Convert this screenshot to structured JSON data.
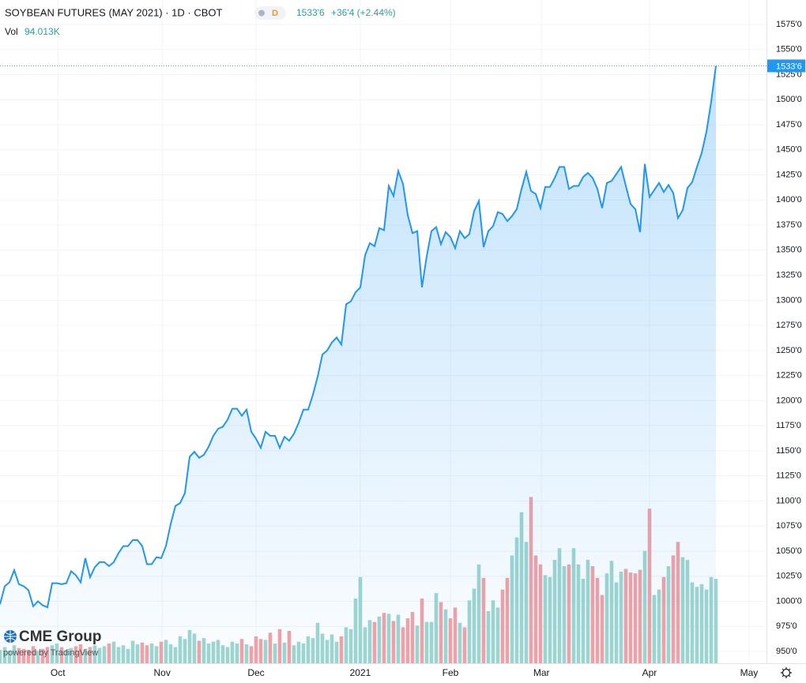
{
  "chart_data": {
    "type": "area",
    "title": "SOYBEAN FUTURES (MAY 2021) · 1D · CBOT",
    "interval_badge": "D",
    "last_price": {
      "value": 1533.75,
      "label": "1533'6"
    },
    "change": "+36'4 (+2.44%)",
    "volume_title": "Vol",
    "volume_label": "94.013K",
    "watermark": "CME Group",
    "powered_by": "powered by TradingView",
    "color": "#2196f3",
    "up_color": "#9fd6cf",
    "down_color": "#f0a3a7",
    "grid": true,
    "x": [
      0,
      1,
      2,
      3,
      4,
      5,
      6,
      7,
      8,
      9,
      10,
      11,
      12,
      13,
      14,
      15,
      16,
      17,
      18,
      19,
      20,
      21,
      22,
      23,
      24,
      25,
      26,
      27,
      28,
      29,
      30,
      31,
      32,
      33,
      34,
      35,
      36,
      37,
      38,
      39,
      40,
      41,
      42,
      43,
      44,
      45,
      46,
      47,
      48,
      49,
      50,
      51,
      52,
      53,
      54,
      55,
      56,
      57,
      58,
      59,
      60,
      61,
      62,
      63,
      64,
      65,
      66,
      67,
      68,
      69,
      70,
      71,
      72,
      73,
      74,
      75,
      76,
      77,
      78,
      79,
      80,
      81,
      82,
      83,
      84,
      85,
      86,
      87,
      88,
      89,
      90,
      91,
      92,
      93,
      94,
      95,
      96,
      97,
      98,
      99,
      100,
      101,
      102,
      103,
      104,
      105,
      106,
      107,
      108,
      109,
      110,
      111,
      112,
      113,
      114,
      115,
      116,
      117,
      118,
      119,
      120,
      121,
      122,
      123,
      124,
      125,
      126,
      127,
      128,
      129,
      130,
      131,
      132,
      133,
      134,
      135,
      136,
      137,
      138,
      139,
      140,
      141,
      142,
      143,
      144,
      145,
      146,
      147,
      148,
      149,
      150,
      151
    ],
    "values": [
      997,
      1015,
      1019,
      1031,
      1017,
      1015,
      1011,
      995,
      1000,
      996,
      994,
      1018,
      1018,
      1017,
      1018,
      1030,
      1026,
      1019,
      1043,
      1024,
      1034,
      1039,
      1039,
      1035,
      1039,
      1048,
      1055,
      1055,
      1061,
      1061,
      1055,
      1037,
      1037,
      1044,
      1043,
      1055,
      1077,
      1095,
      1098,
      1108,
      1144,
      1149,
      1143,
      1146,
      1154,
      1165,
      1172,
      1174,
      1181,
      1192,
      1192,
      1185,
      1191,
      1169,
      1162,
      1153,
      1169,
      1165,
      1165,
      1153,
      1164,
      1160,
      1167,
      1178,
      1191,
      1191,
      1206,
      1224,
      1246,
      1250,
      1258,
      1263,
      1256,
      1296,
      1299,
      1308,
      1313,
      1345,
      1357,
      1354,
      1372,
      1370,
      1414,
      1404,
      1429,
      1416,
      1385,
      1367,
      1369,
      1313,
      1344,
      1369,
      1373,
      1356,
      1368,
      1363,
      1352,
      1369,
      1362,
      1366,
      1389,
      1399,
      1353,
      1369,
      1374,
      1388,
      1386,
      1379,
      1384,
      1391,
      1411,
      1428,
      1409,
      1406,
      1392,
      1413,
      1413,
      1422,
      1433,
      1433,
      1411,
      1414,
      1414,
      1423,
      1427,
      1422,
      1411,
      1392,
      1417,
      1419,
      1426,
      1433,
      1414,
      1396,
      1391,
      1368,
      1436,
      1403,
      1410,
      1417,
      1408,
      1415,
      1407,
      1382,
      1390,
      1412,
      1418,
      1433,
      1447,
      1468,
      1498,
      1533.75
    ],
    "volumes": [
      15000,
      18000,
      14000,
      20000,
      17000,
      16000,
      15000,
      19000,
      14000,
      16000,
      18000,
      20000,
      22000,
      18000,
      15000,
      17000,
      19000,
      21000,
      16000,
      18000,
      20000,
      17000,
      19000,
      22000,
      24000,
      18000,
      20000,
      16000,
      25000,
      21000,
      23000,
      20000,
      22000,
      19000,
      24000,
      26000,
      21000,
      18000,
      30000,
      27000,
      37000,
      33000,
      25000,
      28000,
      22000,
      24000,
      26000,
      20000,
      18000,
      24000,
      22000,
      27000,
      21000,
      19000,
      30000,
      27000,
      26000,
      34000,
      22000,
      38000,
      23000,
      36000,
      20000,
      24000,
      22000,
      30000,
      28000,
      45000,
      33000,
      26000,
      32000,
      24000,
      30000,
      40000,
      38000,
      72000,
      96000,
      40000,
      48000,
      46000,
      52000,
      56000,
      55000,
      47000,
      54000,
      40000,
      50000,
      57000,
      42000,
      72000,
      46000,
      46000,
      78000,
      68000,
      60000,
      50000,
      62000,
      45000,
      40000,
      70000,
      83000,
      110000,
      95000,
      58000,
      70000,
      62000,
      82000,
      95000,
      120000,
      140000,
      168000,
      135000,
      185000,
      120000,
      110000,
      98000,
      96000,
      115000,
      128000,
      108000,
      110000,
      128000,
      110000,
      94000,
      115000,
      108000,
      95000,
      76000,
      100000,
      114000,
      90000,
      102000,
      105000,
      101000,
      100000,
      104000,
      125000,
      172000,
      76000,
      82000,
      96000,
      108000,
      120000,
      135000,
      118000,
      115000,
      90000,
      85000,
      88000,
      82000,
      96000,
      94013
    ],
    "xlim": [
      0,
      161.67
    ],
    "xticks": [
      {
        "value": 12.2,
        "label": "Oct"
      },
      {
        "value": 34.2,
        "label": "Nov"
      },
      {
        "value": 54,
        "label": "Dec"
      },
      {
        "value": 76,
        "label": "2021"
      },
      {
        "value": 95,
        "label": "Feb"
      },
      {
        "value": 114.2,
        "label": "Mar"
      },
      {
        "value": 137,
        "label": "Apr"
      },
      {
        "value": 158,
        "label": "May"
      }
    ],
    "ylim": [
      938.2,
      1599.4
    ],
    "yticks": [
      {
        "value": 950,
        "label": "950'0"
      },
      {
        "value": 975,
        "label": "975'0"
      },
      {
        "value": 1000,
        "label": "1000'0"
      },
      {
        "value": 1025,
        "label": "1025'0"
      },
      {
        "value": 1050,
        "label": "1050'0"
      },
      {
        "value": 1075,
        "label": "1075'0"
      },
      {
        "value": 1100,
        "label": "1100'0"
      },
      {
        "value": 1125,
        "label": "1125'0"
      },
      {
        "value": 1150,
        "label": "1150'0"
      },
      {
        "value": 1175,
        "label": "1175'0"
      },
      {
        "value": 1200,
        "label": "1200'0"
      },
      {
        "value": 1225,
        "label": "1225'0"
      },
      {
        "value": 1250,
        "label": "1250'0"
      },
      {
        "value": 1275,
        "label": "1275'0"
      },
      {
        "value": 1300,
        "label": "1300'0"
      },
      {
        "value": 1325,
        "label": "1325'0"
      },
      {
        "value": 1350,
        "label": "1350'0"
      },
      {
        "value": 1375,
        "label": "1375'0"
      },
      {
        "value": 1400,
        "label": "1400'0"
      },
      {
        "value": 1425,
        "label": "1425'0"
      },
      {
        "value": 1450,
        "label": "1450'0"
      },
      {
        "value": 1475,
        "label": "1475'0"
      },
      {
        "value": 1500,
        "label": "1500'0"
      },
      {
        "value": 1525,
        "label": "1525'0"
      },
      {
        "value": 1550,
        "label": "1550'0"
      },
      {
        "value": 1575,
        "label": "1575'0"
      }
    ],
    "vol_ylim": [
      0,
      738000
    ]
  }
}
